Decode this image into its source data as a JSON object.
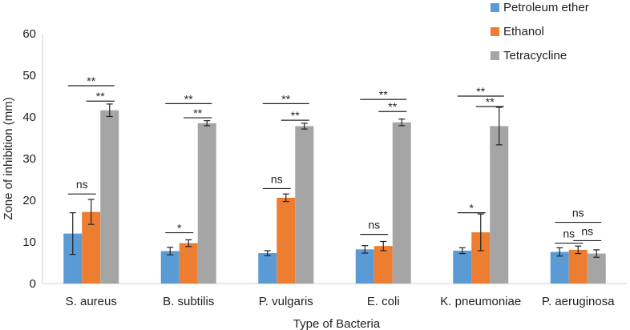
{
  "chart_data": {
    "type": "bar",
    "xlabel": "Type of Bacteria",
    "ylabel": "Zone of inhibition (mm)",
    "ylim": [
      0,
      60
    ],
    "yticks": [
      "0",
      "10",
      "20",
      "30",
      "40",
      "50",
      "60"
    ],
    "grid": false,
    "legend_position": "top-right",
    "categories": [
      "S. aureus",
      "B. subtilis",
      "P. vulgaris",
      "E. coli",
      "K. pneumoniae",
      "P. aeruginosa"
    ],
    "series": [
      {
        "name": "Petroleum ether",
        "color": "#5b9bd5",
        "values": [
          12.0,
          7.8,
          7.3,
          8.2,
          7.9,
          7.6
        ],
        "errors": [
          5.0,
          0.9,
          0.6,
          0.9,
          0.7,
          1.0
        ]
      },
      {
        "name": "Ethanol",
        "color": "#ed7d31",
        "values": [
          17.2,
          9.7,
          20.6,
          9.0,
          12.3,
          8.1
        ],
        "errors": [
          3.0,
          0.8,
          0.9,
          1.1,
          4.4,
          0.9
        ]
      },
      {
        "name": "Tetracycline",
        "color": "#a5a5a5",
        "values": [
          41.6,
          38.5,
          37.8,
          38.7,
          37.8,
          7.2
        ],
        "errors": [
          1.5,
          0.6,
          0.7,
          0.8,
          4.5,
          0.9
        ]
      }
    ],
    "annotations": [
      {
        "category": 0,
        "from": 0,
        "to": 2,
        "y": 47.5,
        "label": "**"
      },
      {
        "category": 0,
        "from": 1,
        "to": 2,
        "y": 43.8,
        "label": "**"
      },
      {
        "category": 0,
        "from": 0,
        "to": 1,
        "y": 21.5,
        "label": "ns"
      },
      {
        "category": 1,
        "from": 0,
        "to": 2,
        "y": 43.2,
        "label": "**"
      },
      {
        "category": 1,
        "from": 1,
        "to": 2,
        "y": 39.8,
        "label": "**"
      },
      {
        "category": 1,
        "from": 0,
        "to": 1,
        "y": 12.2,
        "label": "*"
      },
      {
        "category": 2,
        "from": 0,
        "to": 2,
        "y": 43.2,
        "label": "**"
      },
      {
        "category": 2,
        "from": 1,
        "to": 2,
        "y": 39.2,
        "label": "**"
      },
      {
        "category": 2,
        "from": 0,
        "to": 1,
        "y": 22.8,
        "label": "ns"
      },
      {
        "category": 3,
        "from": 0,
        "to": 2,
        "y": 44.2,
        "label": "**"
      },
      {
        "category": 3,
        "from": 1,
        "to": 2,
        "y": 41.3,
        "label": "**"
      },
      {
        "category": 3,
        "from": 0,
        "to": 1,
        "y": 11.8,
        "label": "ns"
      },
      {
        "category": 4,
        "from": 0,
        "to": 2,
        "y": 45.0,
        "label": "**"
      },
      {
        "category": 4,
        "from": 1,
        "to": 2,
        "y": 42.5,
        "label": "**"
      },
      {
        "category": 4,
        "from": 0,
        "to": 1,
        "y": 17.0,
        "label": "*"
      },
      {
        "category": 5,
        "from": 0,
        "to": 2,
        "y": 14.7,
        "label": "ns"
      },
      {
        "category": 5,
        "from": 0,
        "to": 1,
        "y": 9.7,
        "label": "ns"
      },
      {
        "category": 5,
        "from": 1,
        "to": 2,
        "y": 10.3,
        "label": "ns"
      }
    ]
  }
}
